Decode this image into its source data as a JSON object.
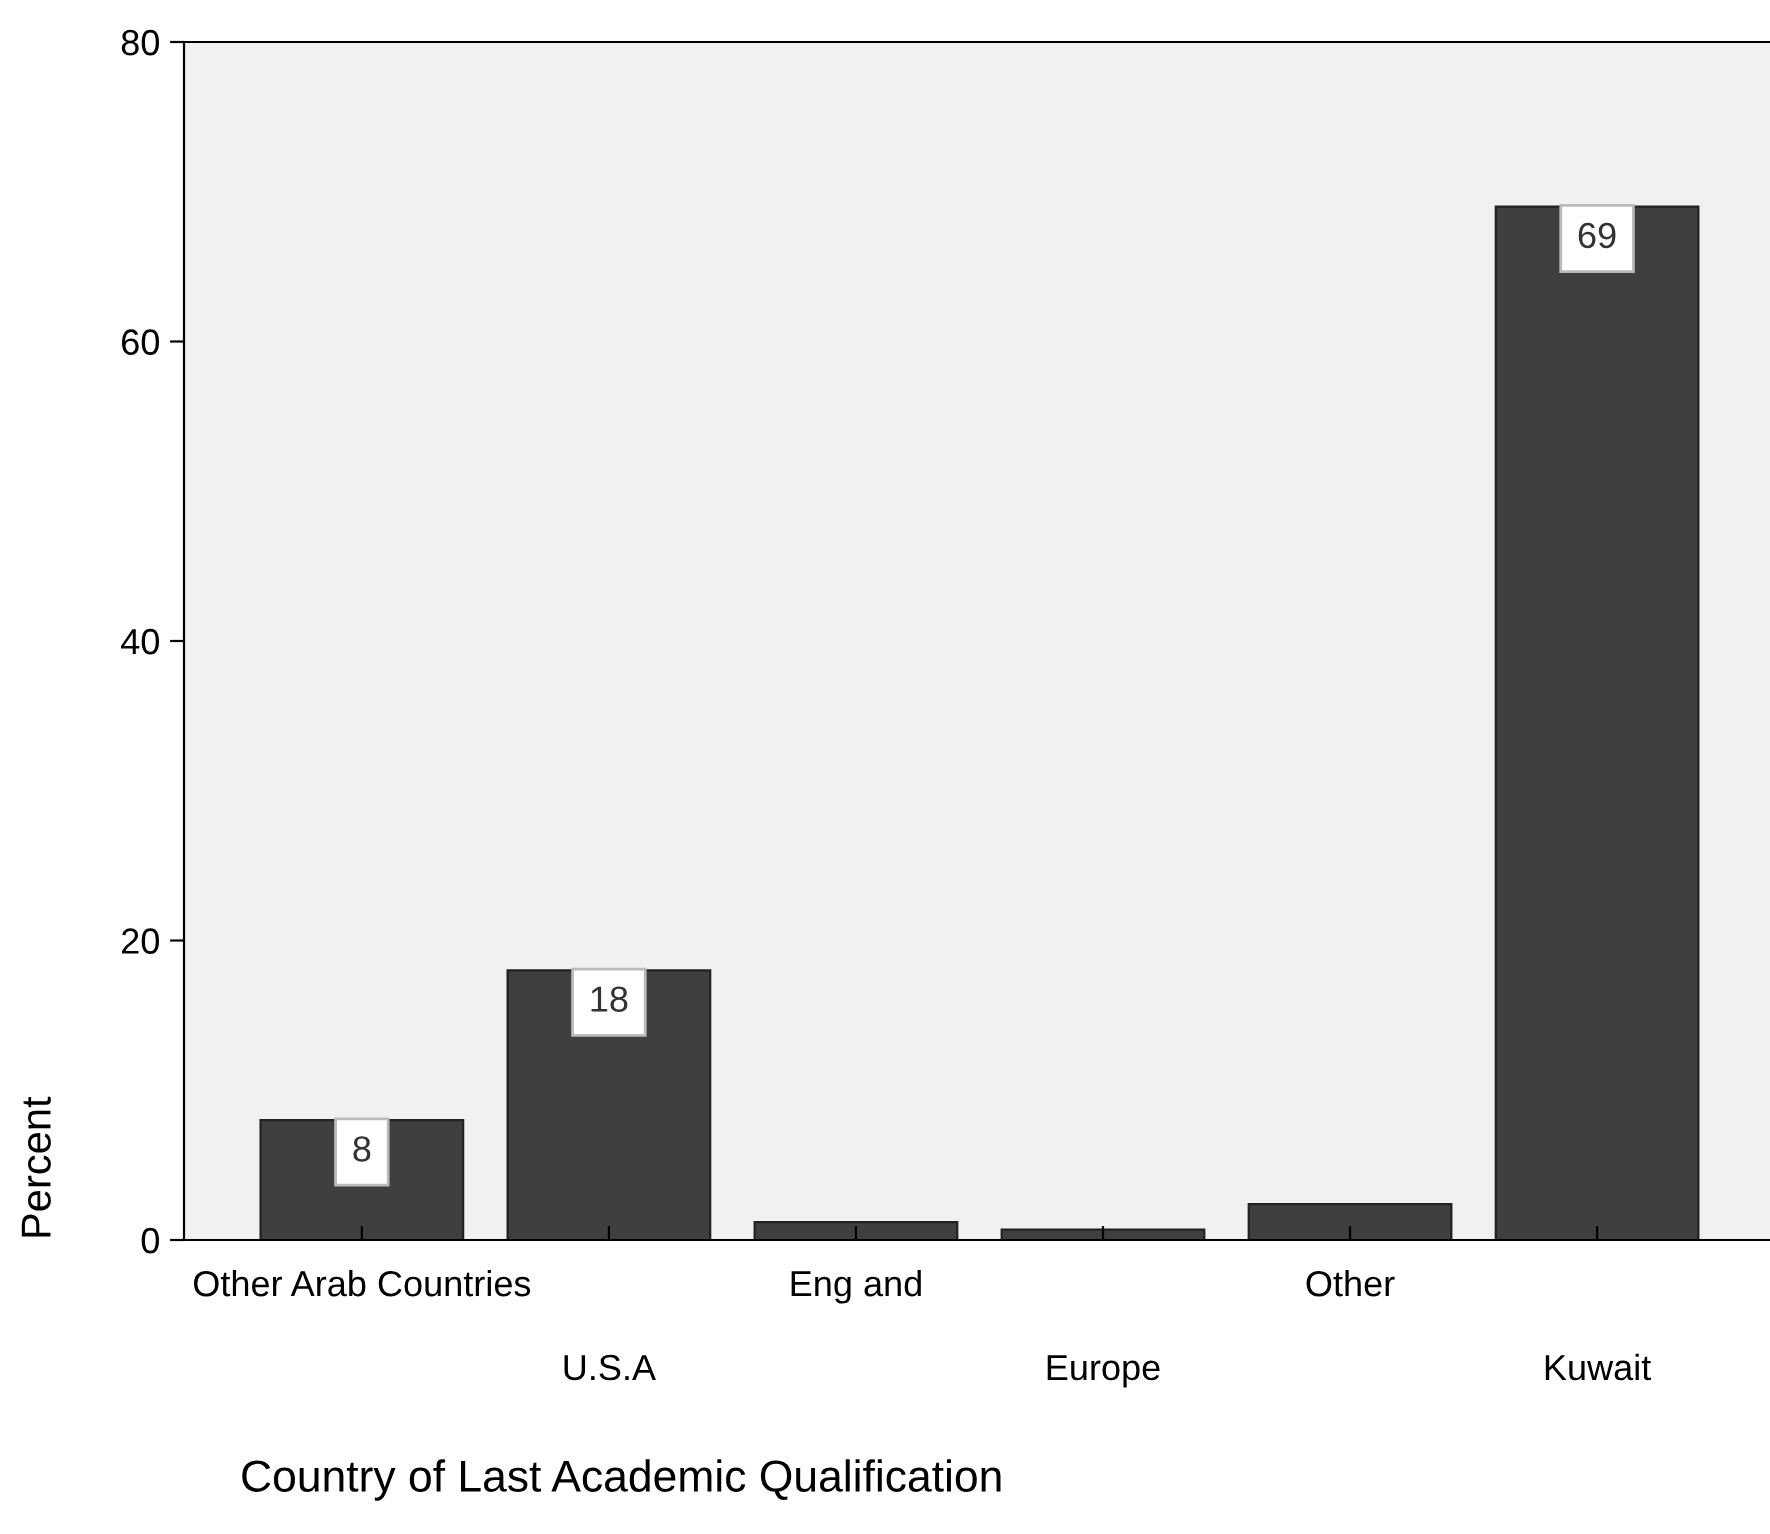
{
  "chart_data": {
    "type": "bar",
    "xlabel": "Country of Last Academic Qualification",
    "ylabel": "Percent",
    "categories": [
      "Other Arab Countries",
      "U.S.A",
      "Eng and",
      "Europe",
      "Other",
      "Kuwait"
    ],
    "values": [
      8,
      18,
      1.2,
      0.7,
      2.4,
      69
    ],
    "value_labels": [
      "8",
      "18",
      null,
      null,
      null,
      "69"
    ],
    "color": "#3f3f3f",
    "ylim": [
      0,
      80
    ],
    "yticks": [
      0,
      20,
      40,
      60,
      80
    ],
    "grid": false
  }
}
